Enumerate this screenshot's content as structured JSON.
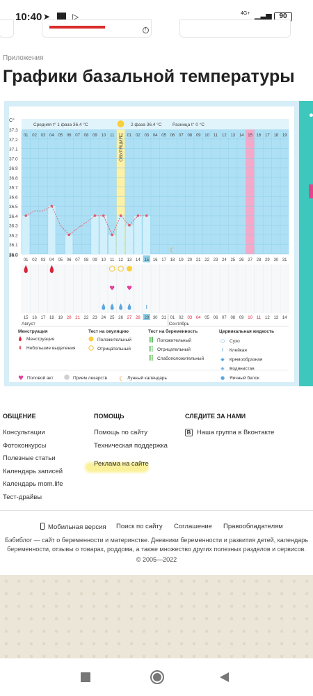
{
  "status_bar": {
    "time": "10:40",
    "icons": [
      "telegram-icon",
      "square-icon",
      "play-icon"
    ],
    "network": "4G+",
    "battery": "90"
  },
  "breadcrumb": "Приложения",
  "page_title": "Графики базальной температуры",
  "chart_data": {
    "type": "line",
    "ylabel": "C°",
    "y_ticks": [
      "37.3",
      "37.2",
      "37.1",
      "37.0",
      "36.9",
      "36.8",
      "36.7",
      "36.6",
      "36.5",
      "36.4",
      "36.3",
      "36.2",
      "36.1",
      "36.0"
    ],
    "ylim": [
      36.0,
      37.3
    ],
    "phase1_label": "Средняя t° 1 фаза 36.4 °C",
    "phase2_label": "2 фаза 36.4 °C",
    "diff_label": "Разница t° 0 °C",
    "ovulation_label": "ОВУЛЯЦИЯ",
    "cycle_days": [
      "01",
      "02",
      "03",
      "04",
      "05",
      "06",
      "07",
      "08",
      "09",
      "10",
      "11",
      "12",
      "01",
      "02",
      "03",
      "04",
      "05",
      "06",
      "07",
      "08",
      "09",
      "10",
      "11",
      "12",
      "13",
      "14",
      "15",
      "16",
      "17",
      "18",
      "19"
    ],
    "day_of_month": [
      "01",
      "02",
      "03",
      "04",
      "05",
      "06",
      "07",
      "08",
      "09",
      "10",
      "11",
      "12",
      "13",
      "14",
      "15",
      "16",
      "17",
      "18",
      "19",
      "20",
      "21",
      "22",
      "23",
      "24",
      "25",
      "26",
      "27",
      "28",
      "29",
      "30",
      "31"
    ],
    "date_row": [
      "15",
      "16",
      "17",
      "18",
      "19",
      "20",
      "21",
      "22",
      "23",
      "24",
      "25",
      "26",
      "27",
      "28",
      "29",
      "30",
      "31",
      "01",
      "02",
      "03",
      "04",
      "05",
      "06",
      "07",
      "08",
      "09",
      "10",
      "11",
      "12",
      "13",
      "14"
    ],
    "red_dates": [
      5,
      6,
      12,
      13,
      19,
      20,
      26,
      27
    ],
    "highlight_day_index": 14,
    "month_august": "Август",
    "month_september": "Сентябрь",
    "temperatures": [
      36.4,
      null,
      null,
      36.5,
      null,
      36.2,
      null,
      null,
      36.4,
      36.4,
      36.2,
      36.4,
      36.3,
      36.4,
      36.4
    ],
    "interpolated": [
      null,
      36.45,
      36.45,
      null,
      36.3,
      null,
      36.27,
      36.33,
      null,
      null,
      null,
      null,
      null,
      null,
      null
    ],
    "menstruation_days": [
      0,
      3
    ],
    "ovulation_test_positive_days": [
      12
    ],
    "ovulation_test_negative_days": [
      10,
      11
    ],
    "intercourse_days": [
      10,
      12
    ],
    "cervical_drops_days": [
      9,
      10,
      11,
      12
    ],
    "pregnancy_test_day": 14,
    "moon_day": 17,
    "red_column_index": 26,
    "colors": {
      "bg": "#aee0f5",
      "grid": "#8fcfe9",
      "bar": "#d1f0fb",
      "line": "#e05a6a",
      "ovulation": "#fdf1a5",
      "red_col": "#f5a8c8"
    }
  },
  "legend": {
    "menstruation": {
      "title": "Менструация",
      "items": [
        "Менструация",
        "Небольшие выделения"
      ]
    },
    "ovulation_test": {
      "title": "Тест на овуляцию",
      "items": [
        "Положительный",
        "Отрицательный"
      ]
    },
    "pregnancy_test": {
      "title": "Тест на беременность",
      "items": [
        "Положительный",
        "Отрицательный",
        "Слабоположительный"
      ]
    },
    "cervical": {
      "title": "Цервикальная жидкость",
      "items": [
        "Сухо",
        "Клейкая",
        "Кремообразная",
        "Водянистая",
        "Яичный белок"
      ]
    },
    "bottom": [
      "Половой акт",
      "Прием лекарств",
      "Лунный календарь"
    ]
  },
  "footer": {
    "col1": {
      "title": "ОБЩЕНИЕ",
      "links": [
        "Консультации",
        "Фотоконкурсы",
        "Полезные статьи",
        "Календарь записей",
        "Календарь mom.life",
        "Тест-драйвы"
      ]
    },
    "col2": {
      "title": "ПОМОЩЬ",
      "links": [
        "Помощь по сайту",
        "Техническая поддержка",
        "Реклама на сайте"
      ]
    },
    "col3": {
      "title": "СЛЕДИТЕ ЗА НАМИ",
      "vk": "В",
      "link": "Наша группа в Вконтакте"
    },
    "bottom_links": [
      "Мобильная версия",
      "Поиск по сайту",
      "Соглашение",
      "Правообладателям"
    ],
    "about": "Бэбиблог — сайт о беременности и материнстве. Дневники беременности и развития детей, календарь беременности, отзывы о товарах, роддома, а также множество других полезных разделов и сервисов.",
    "copyright": "© 2005—2022"
  }
}
